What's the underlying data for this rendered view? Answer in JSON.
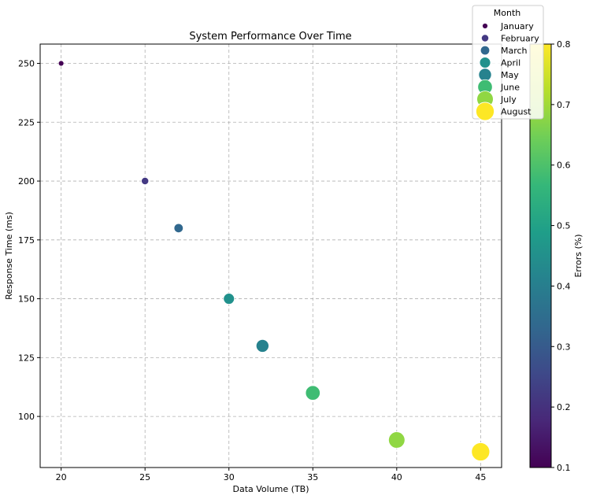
{
  "chart_data": {
    "type": "scatter",
    "title": "System Performance Over Time",
    "xlabel": "Data Volume (TB)",
    "ylabel": "Response Time (ms)",
    "xlim": [
      18.75,
      46.25
    ],
    "ylim": [
      78.3,
      258.2
    ],
    "x_ticks": [
      20,
      25,
      30,
      35,
      40,
      45
    ],
    "y_ticks": [
      100,
      125,
      150,
      175,
      200,
      225,
      250
    ],
    "grid": true,
    "grid_style": "dashed",
    "size_encodes": "month order",
    "color_encodes": "Errors (%)",
    "colormap": "viridis",
    "legend": {
      "title": "Month",
      "placement": "top-right, outside axes"
    },
    "colorbar": {
      "label": "Errors (%)",
      "range": [
        0.1,
        0.8
      ],
      "ticks": [
        0.1,
        0.2,
        0.3,
        0.4,
        0.5,
        0.6,
        0.7,
        0.8
      ]
    },
    "points": [
      {
        "label": "January",
        "x": 20,
        "y": 250,
        "errors": 0.1,
        "color": "#440154"
      },
      {
        "label": "February",
        "x": 25,
        "y": 200,
        "errors": 0.2,
        "color": "#443983"
      },
      {
        "label": "March",
        "x": 27,
        "y": 180,
        "errors": 0.3,
        "color": "#31688e"
      },
      {
        "label": "April",
        "x": 30,
        "y": 150,
        "errors": 0.5,
        "color": "#21918c"
      },
      {
        "label": "May",
        "x": 32,
        "y": 130,
        "errors": 0.4,
        "color": "#26828e"
      },
      {
        "label": "June",
        "x": 35,
        "y": 110,
        "errors": 0.6,
        "color": "#3fbc73"
      },
      {
        "label": "July",
        "x": 40,
        "y": 90,
        "errors": 0.7,
        "color": "#90d743"
      },
      {
        "label": "August",
        "x": 45,
        "y": 85,
        "errors": 0.8,
        "color": "#fde725"
      }
    ]
  }
}
